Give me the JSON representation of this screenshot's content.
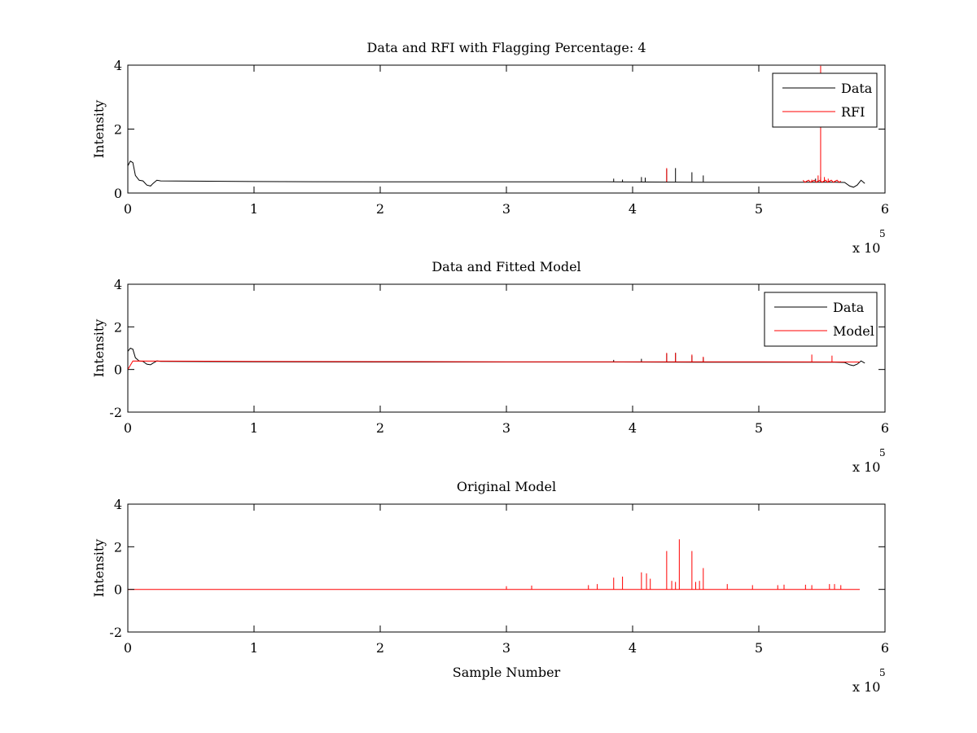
{
  "chart_data": [
    {
      "type": "line",
      "title": "Data and RFI with Flagging Percentage: 4",
      "xlabel": "",
      "ylabel": "Intensity",
      "xlim": [
        0,
        600000
      ],
      "ylim": [
        0,
        4
      ],
      "xticks": [
        0,
        1,
        2,
        3,
        4,
        5,
        6
      ],
      "yticks": [
        0,
        2,
        4
      ],
      "x_multiplier": {
        "base": "x 10",
        "exponent": "5"
      },
      "legend": "top-right",
      "series": [
        {
          "name": "Data",
          "color": "#000000",
          "points": [
            [
              0,
              0.85
            ],
            [
              2000,
              1.0
            ],
            [
              4000,
              0.95
            ],
            [
              6000,
              0.55
            ],
            [
              9000,
              0.4
            ],
            [
              12000,
              0.38
            ],
            [
              15000,
              0.25
            ],
            [
              18000,
              0.22
            ],
            [
              20000,
              0.3
            ],
            [
              23000,
              0.4
            ],
            [
              26000,
              0.38
            ],
            [
              100000,
              0.36
            ],
            [
              200000,
              0.35
            ],
            [
              300000,
              0.35
            ],
            [
              380000,
              0.35
            ],
            [
              450000,
              0.34
            ],
            [
              520000,
              0.34
            ],
            [
              560000,
              0.34
            ],
            [
              568000,
              0.33
            ],
            [
              572000,
              0.22
            ],
            [
              575000,
              0.18
            ],
            [
              578000,
              0.25
            ],
            [
              581000,
              0.4
            ],
            [
              584000,
              0.3
            ]
          ],
          "spikes": [
            [
              385000,
              0.45
            ],
            [
              392000,
              0.42
            ],
            [
              407000,
              0.5
            ],
            [
              410000,
              0.48
            ],
            [
              427000,
              0.75
            ],
            [
              434000,
              0.78
            ],
            [
              447000,
              0.65
            ],
            [
              456000,
              0.55
            ],
            [
              545000,
              0.45
            ],
            [
              549000,
              0.5
            ]
          ]
        },
        {
          "name": "RFI",
          "color": "#ff0000",
          "points": [],
          "spikes": [
            [
              427000,
              0.78
            ],
            [
              549000,
              3.98
            ],
            [
              547000,
              0.55
            ],
            [
              552000,
              0.5
            ],
            [
              555000,
              0.45
            ],
            [
              542000,
              0.42
            ]
          ],
          "region": [
            535000,
            565000
          ]
        }
      ]
    },
    {
      "type": "line",
      "title": "Data and Fitted Model",
      "xlabel": "",
      "ylabel": "Intensity",
      "xlim": [
        0,
        600000
      ],
      "ylim": [
        -2,
        4
      ],
      "xticks": [
        0,
        1,
        2,
        3,
        4,
        5,
        6
      ],
      "yticks": [
        -2,
        0,
        2,
        4
      ],
      "x_multiplier": {
        "base": "x 10",
        "exponent": "5"
      },
      "legend": "top-right",
      "series": [
        {
          "name": "Data",
          "color": "#000000",
          "points": [
            [
              0,
              0.85
            ],
            [
              2000,
              1.0
            ],
            [
              4000,
              0.95
            ],
            [
              6000,
              0.55
            ],
            [
              9000,
              0.4
            ],
            [
              12000,
              0.38
            ],
            [
              15000,
              0.25
            ],
            [
              18000,
              0.22
            ],
            [
              20000,
              0.3
            ],
            [
              23000,
              0.4
            ],
            [
              26000,
              0.38
            ],
            [
              100000,
              0.36
            ],
            [
              200000,
              0.35
            ],
            [
              300000,
              0.35
            ],
            [
              380000,
              0.35
            ],
            [
              450000,
              0.34
            ],
            [
              520000,
              0.34
            ],
            [
              560000,
              0.34
            ],
            [
              568000,
              0.33
            ],
            [
              572000,
              0.22
            ],
            [
              575000,
              0.18
            ],
            [
              578000,
              0.25
            ],
            [
              581000,
              0.4
            ],
            [
              584000,
              0.3
            ]
          ],
          "spikes": [
            [
              385000,
              0.45
            ],
            [
              407000,
              0.5
            ],
            [
              427000,
              0.75
            ],
            [
              434000,
              0.78
            ],
            [
              447000,
              0.65
            ],
            [
              456000,
              0.55
            ]
          ]
        },
        {
          "name": "Model",
          "color": "#ff0000",
          "points": [
            [
              0,
              0.0
            ],
            [
              4000,
              0.4
            ],
            [
              100000,
              0.38
            ],
            [
              200000,
              0.37
            ],
            [
              300000,
              0.36
            ],
            [
              400000,
              0.36
            ],
            [
              500000,
              0.36
            ],
            [
              580000,
              0.35
            ]
          ],
          "spikes": [
            [
              427000,
              0.78
            ],
            [
              434000,
              0.78
            ],
            [
              447000,
              0.7
            ],
            [
              456000,
              0.6
            ],
            [
              542000,
              0.7
            ],
            [
              558000,
              0.65
            ]
          ]
        }
      ]
    },
    {
      "type": "line",
      "title": "Original Model",
      "xlabel": "Sample Number",
      "ylabel": "Intensity",
      "xlim": [
        0,
        600000
      ],
      "ylim": [
        -2,
        4
      ],
      "xticks": [
        0,
        1,
        2,
        3,
        4,
        5,
        6
      ],
      "yticks": [
        -2,
        0,
        2,
        4
      ],
      "x_multiplier": {
        "base": "x 10",
        "exponent": "5"
      },
      "legend": "none",
      "series": [
        {
          "name": "",
          "color": "#ff0000",
          "points": [
            [
              0,
              0.0
            ],
            [
              580000,
              0.0
            ]
          ],
          "spikes": [
            [
              385000,
              0.55
            ],
            [
              392000,
              0.6
            ],
            [
              407000,
              0.8
            ],
            [
              411000,
              0.75
            ],
            [
              414000,
              0.5
            ],
            [
              427000,
              1.8
            ],
            [
              431000,
              0.4
            ],
            [
              434000,
              0.35
            ],
            [
              437000,
              2.35
            ],
            [
              447000,
              1.8
            ],
            [
              450000,
              0.35
            ],
            [
              453000,
              0.4
            ],
            [
              456000,
              1.0
            ],
            [
              300000,
              0.15
            ],
            [
              320000,
              0.18
            ],
            [
              365000,
              0.2
            ],
            [
              372000,
              0.25
            ],
            [
              475000,
              0.25
            ],
            [
              495000,
              0.2
            ],
            [
              515000,
              0.2
            ],
            [
              520000,
              0.22
            ],
            [
              537000,
              0.22
            ],
            [
              542000,
              0.2
            ],
            [
              556000,
              0.25
            ],
            [
              560000,
              0.25
            ],
            [
              565000,
              0.2
            ]
          ]
        }
      ]
    }
  ]
}
